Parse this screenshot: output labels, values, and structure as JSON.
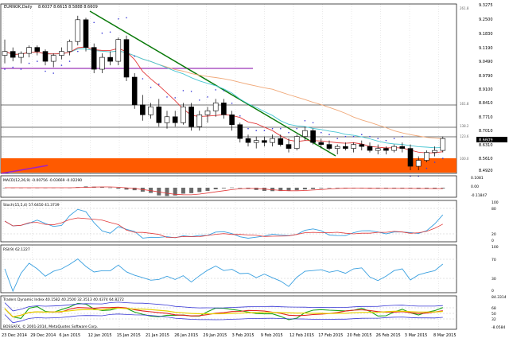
{
  "header": {
    "symbol": "EURNOK,Daily",
    "ohlc": "8.6037 8.6615 8.5888 8.6609"
  },
  "main_panel": {
    "price_ticks": [
      "9.3275",
      "9.2500",
      "9.1830",
      "9.1190",
      "9.0490",
      "8.9790",
      "8.9100",
      "8.8410",
      "8.7710",
      "8.7010",
      "8.6310",
      "8.5610",
      "8.4920"
    ],
    "current_price": "8.6609",
    "level_labels": [
      "261.8",
      "161.8",
      "138.2",
      "123.6",
      "100.0"
    ]
  },
  "macd": {
    "label": "MACD(12,26,9) -0.00756 -0.03669 -0.02290",
    "ticks": [
      "0.1081",
      "0.00",
      "-0.11847"
    ]
  },
  "stoch": {
    "label": "Stoch(15,5,4) 57.6450 41.3739",
    "ticks": [
      "100",
      "80",
      "20",
      "0"
    ]
  },
  "rsi": {
    "label": "RSI(9) 62.1227",
    "ticks": [
      "100",
      "70",
      "30",
      "0"
    ]
  },
  "tdi": {
    "label": "Traders Dynamic Index 40.1582 40.2500 32.3513 40.4374 64.8272",
    "ticks": [
      "84.3314",
      "68",
      "50",
      "32",
      "-8.0584"
    ],
    "copyright": "BOSSAFX, © 2001-2014, MetaQuotes Software Corp."
  },
  "x_axis": {
    "labels": [
      "23 Dec 2014",
      "29 Dec 2014",
      "6 Jan 2015",
      "12 Jan 2015",
      "15 Jan 2015",
      "21 Jan 2015",
      "26 Jan 2015",
      "29 Jan 2015",
      "3 Feb 2015",
      "9 Feb 2015",
      "12 Feb 2015",
      "17 Feb 2015",
      "20 Feb 2015",
      "26 Feb 2015",
      "3 Mar 2015",
      "8 Mar 2015"
    ]
  },
  "candles": [
    [
      9.08,
      9.16,
      9.04,
      9.1
    ],
    [
      9.1,
      9.12,
      9.05,
      9.07
    ],
    [
      9.07,
      9.1,
      9.04,
      9.09
    ],
    [
      9.09,
      9.13,
      9.07,
      9.12
    ],
    [
      9.12,
      9.13,
      9.08,
      9.1
    ],
    [
      9.1,
      9.11,
      9.03,
      9.05
    ],
    [
      9.05,
      9.09,
      9.02,
      9.08
    ],
    [
      9.08,
      9.12,
      9.06,
      9.1
    ],
    [
      9.1,
      9.16,
      9.08,
      9.15
    ],
    [
      9.15,
      9.28,
      9.13,
      9.26
    ],
    [
      9.26,
      9.27,
      9.1,
      9.12
    ],
    [
      9.12,
      9.14,
      8.99,
      9.01
    ],
    [
      9.01,
      9.09,
      8.99,
      9.07
    ],
    [
      9.07,
      9.1,
      9.03,
      9.05
    ],
    [
      9.05,
      9.17,
      9.03,
      9.16
    ],
    [
      9.16,
      9.18,
      8.95,
      8.97
    ],
    [
      8.97,
      8.99,
      8.81,
      8.83
    ],
    [
      8.83,
      8.88,
      8.75,
      8.78
    ],
    [
      8.78,
      8.84,
      8.76,
      8.82
    ],
    [
      8.82,
      8.86,
      8.72,
      8.74
    ],
    [
      8.74,
      8.8,
      8.71,
      8.77
    ],
    [
      8.77,
      8.8,
      8.72,
      8.74
    ],
    [
      8.74,
      8.84,
      8.73,
      8.82
    ],
    [
      8.82,
      8.84,
      8.7,
      8.72
    ],
    [
      8.72,
      8.8,
      8.7,
      8.78
    ],
    [
      8.78,
      8.82,
      8.74,
      8.8
    ],
    [
      8.8,
      8.86,
      8.77,
      8.84
    ],
    [
      8.84,
      8.86,
      8.76,
      8.78
    ],
    [
      8.78,
      8.8,
      8.7,
      8.73
    ],
    [
      8.73,
      8.74,
      8.64,
      8.66
    ],
    [
      8.66,
      8.68,
      8.62,
      8.64
    ],
    [
      8.64,
      8.67,
      8.61,
      8.65
    ],
    [
      8.65,
      8.67,
      8.62,
      8.64
    ],
    [
      8.64,
      8.68,
      8.62,
      8.66
    ],
    [
      8.66,
      8.68,
      8.62,
      8.63
    ],
    [
      8.63,
      8.66,
      8.59,
      8.61
    ],
    [
      8.61,
      8.68,
      8.6,
      8.67
    ],
    [
      8.67,
      8.72,
      8.65,
      8.7
    ],
    [
      8.7,
      8.71,
      8.63,
      8.64
    ],
    [
      8.64,
      8.66,
      8.61,
      8.63
    ],
    [
      8.63,
      8.65,
      8.6,
      8.61
    ],
    [
      8.61,
      8.63,
      8.58,
      8.62
    ],
    [
      8.62,
      8.64,
      8.6,
      8.61
    ],
    [
      8.61,
      8.64,
      8.59,
      8.63
    ],
    [
      8.63,
      8.65,
      8.6,
      8.62
    ],
    [
      8.62,
      8.64,
      8.59,
      8.6
    ],
    [
      8.6,
      8.63,
      8.58,
      8.61
    ],
    [
      8.61,
      8.62,
      8.58,
      8.6
    ],
    [
      8.6,
      8.63,
      8.59,
      8.62
    ],
    [
      8.62,
      8.64,
      8.59,
      8.61
    ],
    [
      8.61,
      8.63,
      8.5,
      8.52
    ],
    [
      8.52,
      8.57,
      8.5,
      8.55
    ],
    [
      8.55,
      8.6,
      8.54,
      8.59
    ],
    [
      8.59,
      8.62,
      8.57,
      8.6
    ],
    [
      8.6,
      8.67,
      8.59,
      8.66
    ]
  ],
  "colors": {
    "background": "#ffffff",
    "grid": "#c8c8c8",
    "separator": "#000000",
    "level_zone": "#ff5a00",
    "fast_ma": "#e33a3a",
    "slow_ma": "#47c6d3",
    "long_ma": "#f0a878",
    "trend_line": "#0b7a0b",
    "sar": "#3a3ad6",
    "purple_line": "#a020c8",
    "indicator_line": "#3aa0e0",
    "signal_line": "#e23a3a"
  }
}
